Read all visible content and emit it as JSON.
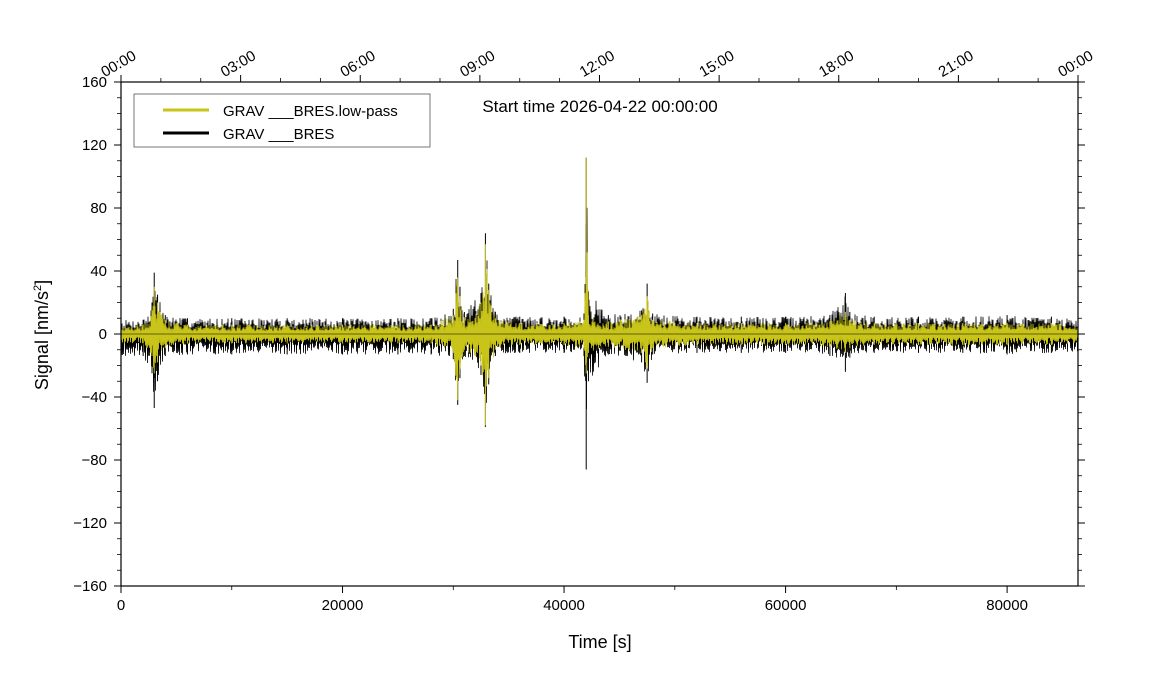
{
  "chart_data": {
    "type": "line",
    "xlabel": "Time [s]",
    "ylabel_main": "Signal [nm/s",
    "ylabel_sup": "2",
    "ylabel_end": "]",
    "annotation": "Start time 2026-04-22 00:00:00",
    "xlim": [
      0,
      86400
    ],
    "ylim": [
      -160,
      160
    ],
    "x_ticks": [
      0,
      20000,
      40000,
      60000,
      80000
    ],
    "x_tick_labels": [
      "0",
      "20000",
      "40000",
      "60000",
      "80000"
    ],
    "y_ticks": [
      -160,
      -120,
      -80,
      -40,
      0,
      40,
      80,
      120,
      160
    ],
    "y_tick_labels": [
      "−160",
      "−120",
      "−80",
      "−40",
      "0",
      "40",
      "80",
      "120",
      "160"
    ],
    "top_ticks": [
      0,
      10800,
      21600,
      32400,
      43200,
      54000,
      64800,
      75600,
      86400
    ],
    "top_tick_labels": [
      "00:00",
      "03:00",
      "06:00",
      "09:00",
      "12:00",
      "15:00",
      "18:00",
      "21:00",
      "00:00"
    ],
    "legend_position": "top-left",
    "series": [
      {
        "name": "GRAV ___BRES.low-pass",
        "color": "#c8c41a",
        "x": [
          0,
          2000,
          2800,
          3000,
          3300,
          4000,
          6000,
          10000,
          15000,
          20000,
          25000,
          28000,
          30000,
          30400,
          30600,
          31000,
          32500,
          32900,
          33200,
          33800,
          36000,
          40000,
          41800,
          42000,
          42200,
          44000,
          47000,
          47500,
          48000,
          52000,
          56000,
          60000,
          64000,
          65400,
          65800,
          68000,
          72000,
          76000,
          80000,
          84000,
          86400
        ],
        "upper": [
          6,
          6,
          15,
          30,
          20,
          9,
          6,
          6,
          6,
          6,
          6,
          6,
          12,
          36,
          24,
          10,
          20,
          57,
          28,
          10,
          7,
          7,
          9,
          112,
          12,
          8,
          12,
          24,
          9,
          7,
          7,
          7,
          8,
          14,
          9,
          7,
          7,
          7,
          7,
          7,
          6
        ],
        "lower": [
          -6,
          -6,
          -14,
          -25,
          -18,
          -9,
          -6,
          -6,
          -6,
          -6,
          -6,
          -6,
          -12,
          -42,
          -22,
          -10,
          -20,
          -58,
          -28,
          -10,
          -7,
          -7,
          -9,
          -25,
          -12,
          -8,
          -12,
          -22,
          -9,
          -7,
          -7,
          -7,
          -8,
          -12,
          -9,
          -7,
          -7,
          -7,
          -7,
          -7,
          -6
        ]
      },
      {
        "name": "GRAV ___BRES",
        "color": "#000000",
        "x": [
          0,
          2000,
          2800,
          3000,
          3300,
          4000,
          6000,
          10000,
          15000,
          20000,
          25000,
          28000,
          30000,
          30400,
          30600,
          31000,
          32500,
          32900,
          33200,
          33800,
          36000,
          40000,
          41800,
          42000,
          42200,
          44000,
          47000,
          47500,
          48000,
          52000,
          56000,
          60000,
          64000,
          65400,
          65800,
          68000,
          72000,
          76000,
          80000,
          84000,
          86400
        ],
        "upper": [
          9,
          9,
          20,
          39,
          25,
          12,
          10,
          10,
          10,
          10,
          10,
          10,
          16,
          47,
          30,
          14,
          26,
          64,
          32,
          14,
          11,
          11,
          13,
          112,
          27,
          12,
          15,
          32,
          13,
          11,
          11,
          11,
          12,
          26,
          14,
          11,
          11,
          11,
          12,
          11,
          9
        ],
        "lower": [
          -14,
          -14,
          -25,
          -47,
          -30,
          -14,
          -13,
          -13,
          -13,
          -13,
          -13,
          -13,
          -16,
          -45,
          -28,
          -14,
          -26,
          -59,
          -32,
          -14,
          -12,
          -12,
          -14,
          -86,
          -30,
          -13,
          -18,
          -31,
          -13,
          -12,
          -12,
          -12,
          -14,
          -24,
          -15,
          -12,
          -12,
          -12,
          -13,
          -12,
          -12
        ]
      }
    ]
  }
}
